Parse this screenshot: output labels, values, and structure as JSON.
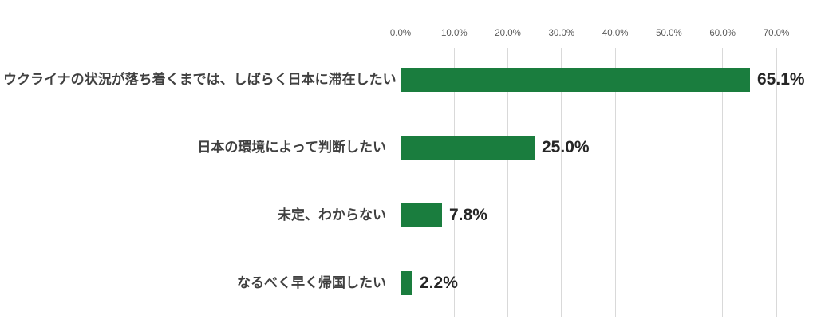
{
  "chart_data": {
    "type": "bar",
    "orientation": "horizontal",
    "title": "",
    "categories": [
      "ウクライナの状況が落ち着くまでは、しばらく日本に滞在したい",
      "日本の環境によって判断したい",
      "未定、わからない",
      "なるべく早く帰国したい"
    ],
    "values": [
      65.1,
      25.0,
      7.8,
      2.2
    ],
    "value_labels": [
      "65.1%",
      "25.0%",
      "7.8%",
      "2.2%"
    ],
    "x_axis": {
      "position": "top",
      "min": 0,
      "max": 70,
      "tick_step": 10,
      "tick_labels": [
        "0.0%",
        "10.0%",
        "20.0%",
        "30.0%",
        "40.0%",
        "50.0%",
        "60.0%",
        "70.0%"
      ]
    },
    "grid": true,
    "legend": false,
    "colors": {
      "bar": "#1a7d3e",
      "axis_text": "#595959",
      "category_text": "#404040",
      "value_text": "#262626",
      "gridline": "#d9d9d9",
      "background": "#ffffff"
    }
  }
}
